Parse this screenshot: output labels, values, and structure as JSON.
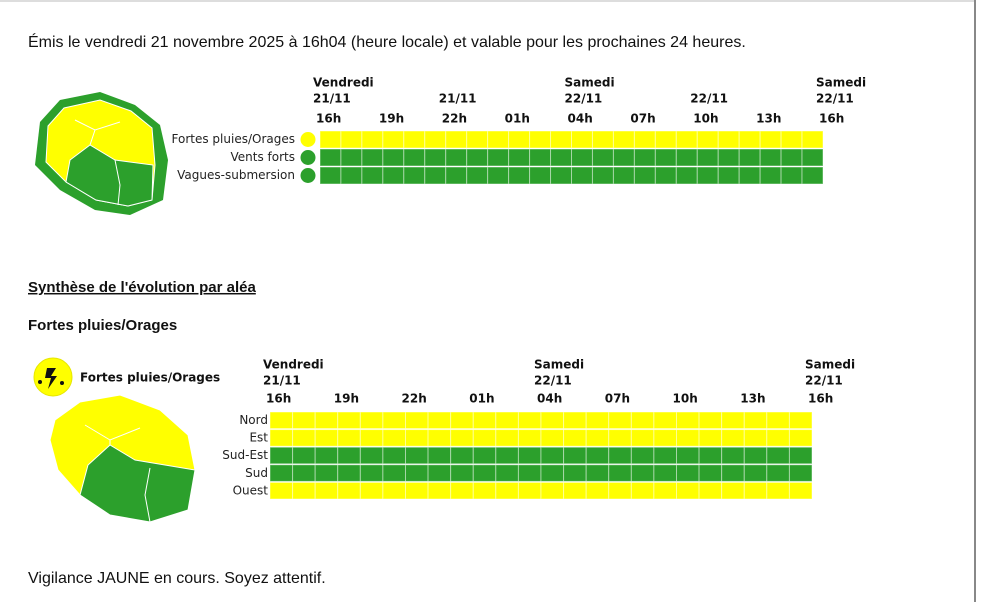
{
  "header": {
    "issued": "Émis le vendredi 21 novembre 2025 à 16h04 (heure locale) et valable pour les prochaines 24 heures."
  },
  "overview": {
    "day_labels": [
      {
        "day": "Vendredi",
        "date": "21/11"
      },
      {
        "date": "21/11"
      },
      {
        "day": "Samedi",
        "date": "22/11"
      },
      {
        "date": "22/11"
      },
      {
        "day": "Samedi",
        "date": "22/11"
      }
    ],
    "hours": [
      "16h",
      "19h",
      "22h",
      "01h",
      "04h",
      "07h",
      "10h",
      "13h",
      "16h"
    ],
    "rows": [
      {
        "label": "Fortes pluies/Orages",
        "color": "#ffff00"
      },
      {
        "label": "Vents forts",
        "color": "#2ca02c"
      },
      {
        "label": "Vagues-submersion",
        "color": "#2ca02c"
      }
    ]
  },
  "synthesis": {
    "title": "Synthèse de l'évolution par aléa",
    "hazard": {
      "title": "Fortes pluies/Orages",
      "legend": "Fortes pluies/Orages",
      "day_labels": [
        {
          "day": "Vendredi",
          "date": "21/11"
        },
        {
          "day": "Samedi",
          "date": "22/11"
        },
        {
          "day": "Samedi",
          "date": "22/11"
        }
      ],
      "hours": [
        "16h",
        "19h",
        "22h",
        "01h",
        "04h",
        "07h",
        "10h",
        "13h",
        "16h"
      ],
      "rows": [
        {
          "label": "Nord",
          "color": "#ffff00"
        },
        {
          "label": "Est",
          "color": "#ffff00"
        },
        {
          "label": "Sud-Est",
          "color": "#2ca02c"
        },
        {
          "label": "Sud",
          "color": "#2ca02c"
        },
        {
          "label": "Ouest",
          "color": "#ffff00"
        }
      ]
    }
  },
  "footer": {
    "message": "Vigilance JAUNE en cours. Soyez attentif."
  }
}
